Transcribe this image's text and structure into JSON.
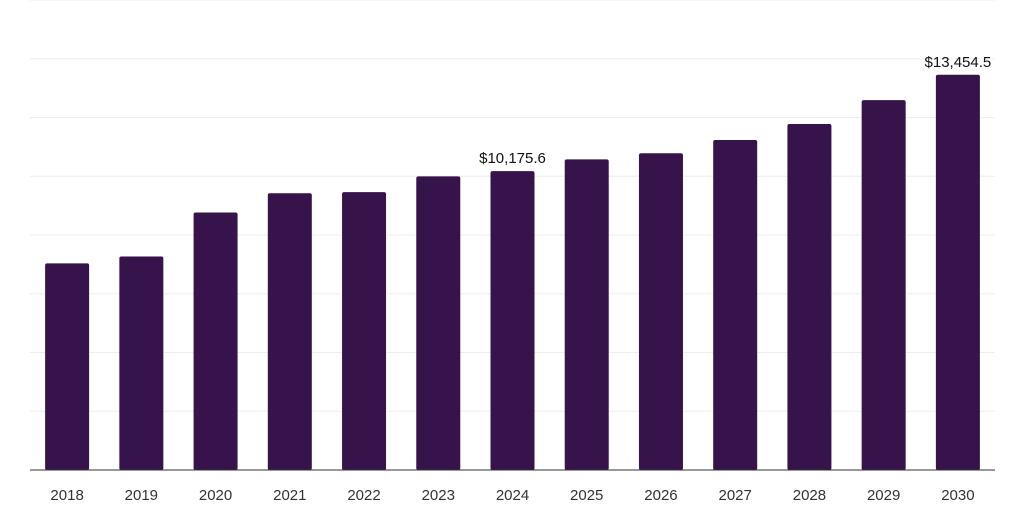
{
  "chart_data": {
    "type": "bar",
    "title": "",
    "xlabel": "",
    "ylabel": "",
    "categories": [
      "2018",
      "2019",
      "2020",
      "2021",
      "2022",
      "2023",
      "2024",
      "2025",
      "2026",
      "2027",
      "2028",
      "2029",
      "2030"
    ],
    "values": [
      7032,
      7267,
      8765,
      9421,
      9459,
      9997,
      10175.6,
      10573,
      10784,
      11232,
      11779,
      12593,
      13454.5
    ],
    "value_labels": [
      null,
      null,
      null,
      null,
      null,
      null,
      "$10,175.6",
      null,
      null,
      null,
      null,
      null,
      "$13,454.5"
    ],
    "ylim": [
      0,
      16000
    ],
    "gridlines": true,
    "y_ticks_visible": false,
    "bar_color": "#36134a",
    "gridline_color": "#eeeeee",
    "axis_color": "#333333"
  }
}
